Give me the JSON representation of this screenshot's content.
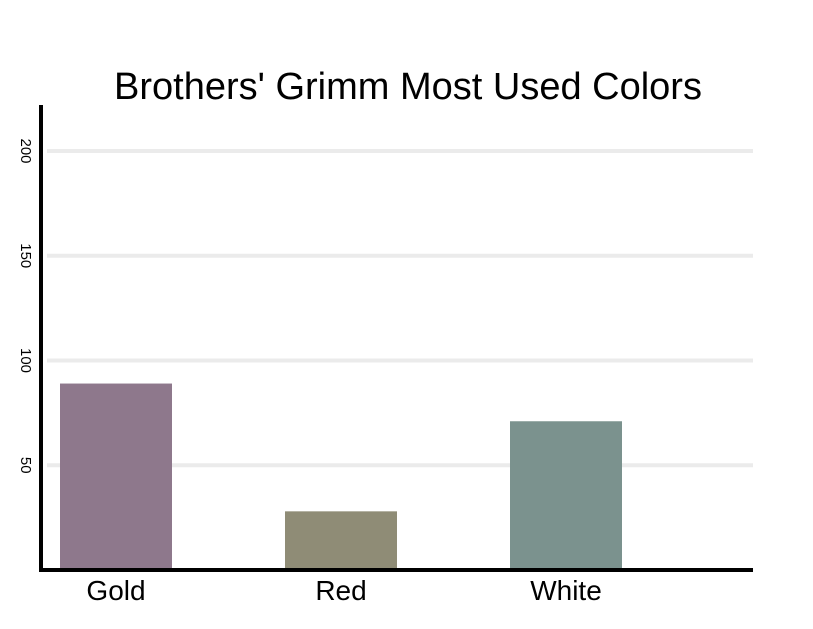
{
  "chart_data": {
    "type": "bar",
    "title": "Brothers' Grimm Most Used Colors",
    "xlabel": "",
    "ylabel": "",
    "categories": [
      "Gold",
      "Red",
      "White"
    ],
    "values": [
      89,
      28,
      71
    ],
    "bar_colors": [
      "#8e788c",
      "#8f8c76",
      "#7b928e"
    ],
    "ylim": [
      0,
      220
    ],
    "yticks": [
      50,
      100,
      150,
      200
    ],
    "ytick_labels": [
      "50",
      "100",
      "150",
      "200"
    ],
    "grid": true,
    "legend": "none"
  }
}
